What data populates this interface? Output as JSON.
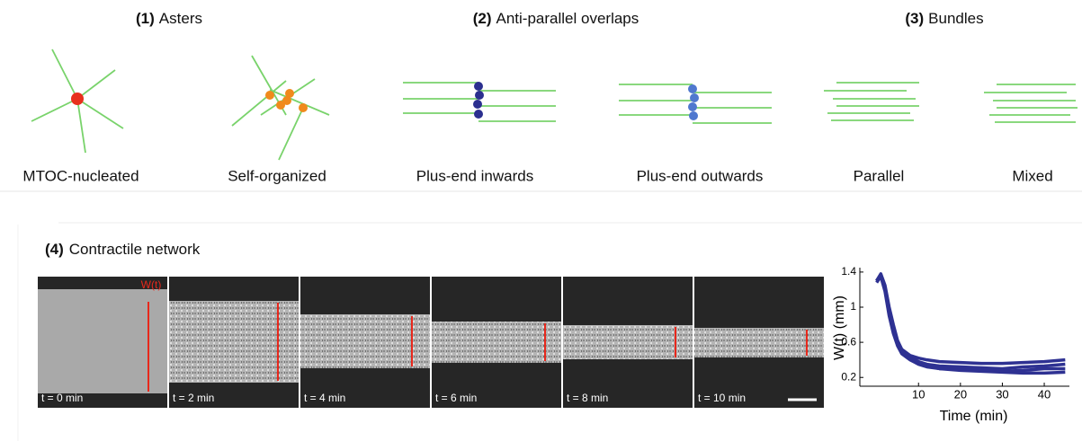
{
  "header": {
    "groups": [
      {
        "number": "(1)",
        "title": "Asters",
        "items": [
          "MTOC-nucleated",
          "Self-organized"
        ]
      },
      {
        "number": "(2)",
        "title": "Anti-parallel overlaps",
        "items": [
          "Plus-end inwards",
          "Plus-end outwards"
        ]
      },
      {
        "number": "(3)",
        "title": "Bundles",
        "items": [
          "Parallel",
          "Mixed"
        ]
      }
    ]
  },
  "network": {
    "number": "(4)",
    "title": "Contractile network",
    "width_label": "W(t)",
    "frames": [
      "t = 0 min",
      "t = 2 min",
      "t = 4 min",
      "t = 6 min",
      "t = 8 min",
      "t = 10 min"
    ]
  },
  "chart_data": {
    "type": "line",
    "x_label": "Time (min)",
    "y_label": "W(t) (mm)",
    "x": [
      0,
      1,
      2,
      3,
      4,
      5,
      6,
      8,
      10,
      12,
      15,
      20,
      25,
      30,
      35,
      40,
      45
    ],
    "series": [
      {
        "color": "#2e3192",
        "values": [
          1.3,
          1.38,
          1.25,
          1.0,
          0.8,
          0.62,
          0.52,
          0.45,
          0.42,
          0.4,
          0.38,
          0.37,
          0.36,
          0.36,
          0.37,
          0.38,
          0.4
        ]
      },
      {
        "color": "#2e3192",
        "values": [
          1.3,
          1.36,
          1.2,
          0.95,
          0.75,
          0.6,
          0.5,
          0.42,
          0.38,
          0.35,
          0.33,
          0.32,
          0.31,
          0.3,
          0.32,
          0.33,
          0.35
        ]
      },
      {
        "color": "#2e3192",
        "values": [
          1.28,
          1.35,
          1.18,
          0.9,
          0.7,
          0.56,
          0.47,
          0.4,
          0.35,
          0.32,
          0.3,
          0.3,
          0.28,
          0.27,
          0.28,
          0.3,
          0.3
        ]
      },
      {
        "color": "#2e3192",
        "values": [
          1.3,
          1.37,
          1.22,
          0.98,
          0.78,
          0.6,
          0.5,
          0.43,
          0.38,
          0.33,
          0.3,
          0.28,
          0.27,
          0.26,
          0.25,
          0.25,
          0.26
        ]
      }
    ],
    "xlim": [
      -4,
      46
    ],
    "ylim": [
      0.1,
      1.45
    ],
    "xticks": [
      10,
      20,
      30,
      40
    ],
    "yticks": [
      0.2,
      0.6,
      1.0,
      1.4
    ]
  }
}
